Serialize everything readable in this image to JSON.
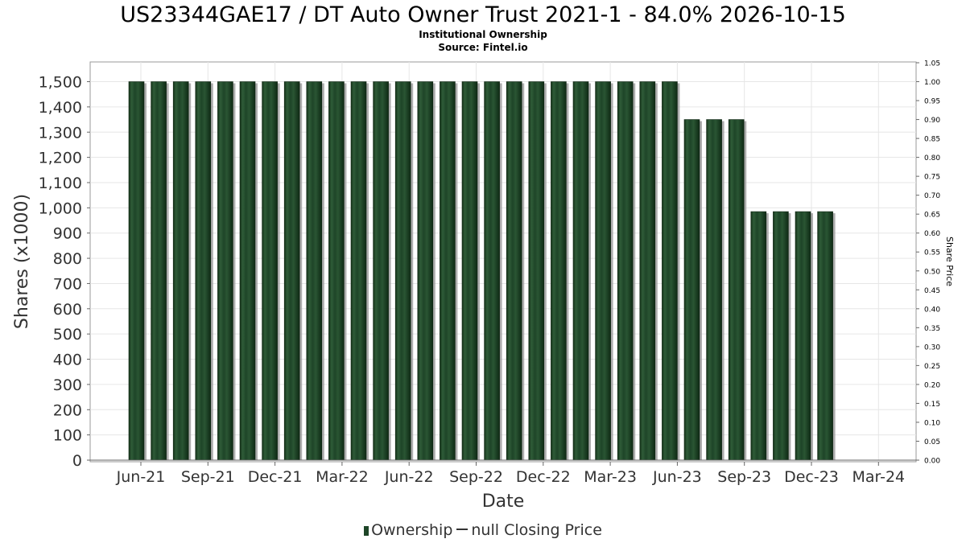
{
  "chart_data": {
    "type": "bar",
    "title": "US23344GAE17 / DT Auto Owner Trust 2021-1 - 84.0% 2026-10-15",
    "subtitle": "Institutional Ownership",
    "source": "Source: Fintel.io",
    "xlabel": "Date",
    "ylabel": "Shares (x1000)",
    "y2label": "Share Price",
    "ylim": [
      0,
      1575
    ],
    "y2lim": [
      0,
      1.05
    ],
    "yticks": [
      "0",
      "100",
      "200",
      "300",
      "400",
      "500",
      "600",
      "700",
      "800",
      "900",
      "1,000",
      "1,100",
      "1,200",
      "1,300",
      "1,400",
      "1,500"
    ],
    "y2ticks": [
      "0.00",
      "0.05",
      "0.10",
      "0.15",
      "0.20",
      "0.25",
      "0.30",
      "0.35",
      "0.40",
      "0.45",
      "0.50",
      "0.55",
      "0.60",
      "0.65",
      "0.70",
      "0.75",
      "0.80",
      "0.85",
      "0.90",
      "0.95",
      "1.00",
      "1.05"
    ],
    "xticks": [
      "Jun-21",
      "Sep-21",
      "Dec-21",
      "Mar-22",
      "Jun-22",
      "Sep-22",
      "Dec-22",
      "Mar-23",
      "Jun-23",
      "Sep-23",
      "Dec-23",
      "Mar-24"
    ],
    "grid": true,
    "legend_position": "bottom",
    "series": [
      {
        "name": "Ownership",
        "color": "#1e4528",
        "values": [
          1500,
          1500,
          1500,
          1500,
          1500,
          1500,
          1500,
          1500,
          1500,
          1500,
          1500,
          1500,
          1500,
          1500,
          1500,
          1500,
          1500,
          1500,
          1500,
          1500,
          1500,
          1500,
          1500,
          1500,
          1500,
          1350,
          1350,
          1350,
          985,
          985,
          985,
          985
        ]
      },
      {
        "name": "null Closing Price",
        "color": "#333333",
        "values": []
      }
    ]
  }
}
